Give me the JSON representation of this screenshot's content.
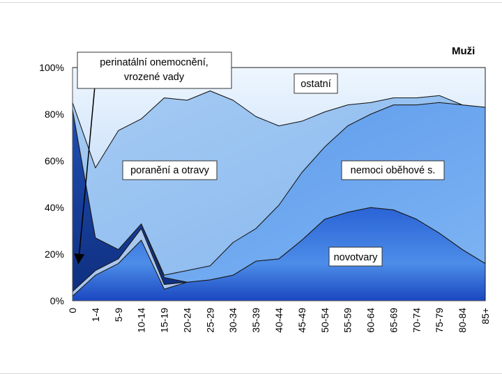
{
  "chart_data": {
    "type": "area",
    "title": "Muži",
    "ylim": [
      0,
      100
    ],
    "y_ticks": [
      "0%",
      "20%",
      "40%",
      "60%",
      "80%",
      "100%"
    ],
    "categories": [
      "0",
      "1-4",
      "5-9",
      "10-14",
      "15-19",
      "20-24",
      "25-29",
      "30-34",
      "35-39",
      "40-44",
      "45-49",
      "50-54",
      "55-59",
      "60-64",
      "65-69",
      "70-74",
      "75-79",
      "80-84",
      "85+"
    ],
    "stacked": true,
    "series": [
      {
        "name": "novotvary",
        "color": "#2f6fd8",
        "values": [
          2,
          11,
          16,
          26,
          5,
          8,
          9,
          11,
          17,
          18,
          26,
          35,
          38,
          40,
          39,
          35,
          29,
          22,
          16
        ]
      },
      {
        "name": "",
        "color": "#a9c7ef",
        "values": [
          2,
          2,
          2,
          5,
          2,
          0,
          0,
          0,
          0,
          0,
          0,
          0,
          0,
          0,
          0,
          0,
          0,
          0,
          0
        ]
      },
      {
        "name": "",
        "color": "#173f9a",
        "values": [
          78,
          14,
          4,
          2,
          3,
          0,
          0,
          0,
          0,
          0,
          0,
          0,
          0,
          0,
          0,
          0,
          0,
          0,
          0
        ]
      },
      {
        "name": "nemoci oběhové s.",
        "color": "#6fa8ef",
        "values": [
          0,
          0,
          0,
          0,
          1,
          5,
          6,
          14,
          14,
          23,
          29,
          31,
          37,
          40,
          45,
          49,
          56,
          62,
          67
        ]
      },
      {
        "name": "poranění a otravy",
        "color": "#8fbcf0",
        "values": [
          3,
          30,
          51,
          45,
          76,
          73,
          75,
          61,
          48,
          34,
          22,
          15,
          9,
          5,
          3,
          3,
          3,
          0,
          0
        ]
      },
      {
        "name": "ostatní",
        "color": "#d2e5fb",
        "values": [
          15,
          43,
          27,
          22,
          13,
          14,
          10,
          14,
          21,
          25,
          23,
          19,
          16,
          15,
          13,
          13,
          12,
          16,
          17
        ]
      }
    ],
    "annotations": [
      {
        "text_lines": [
          "perinatální onemocnění,",
          "vrozené vady"
        ],
        "style": "callout-arrow"
      },
      {
        "text": "ostatní"
      },
      {
        "text": "poranění a otravy"
      },
      {
        "text": "nemoci oběhové s."
      },
      {
        "text": "novotvary"
      }
    ]
  }
}
